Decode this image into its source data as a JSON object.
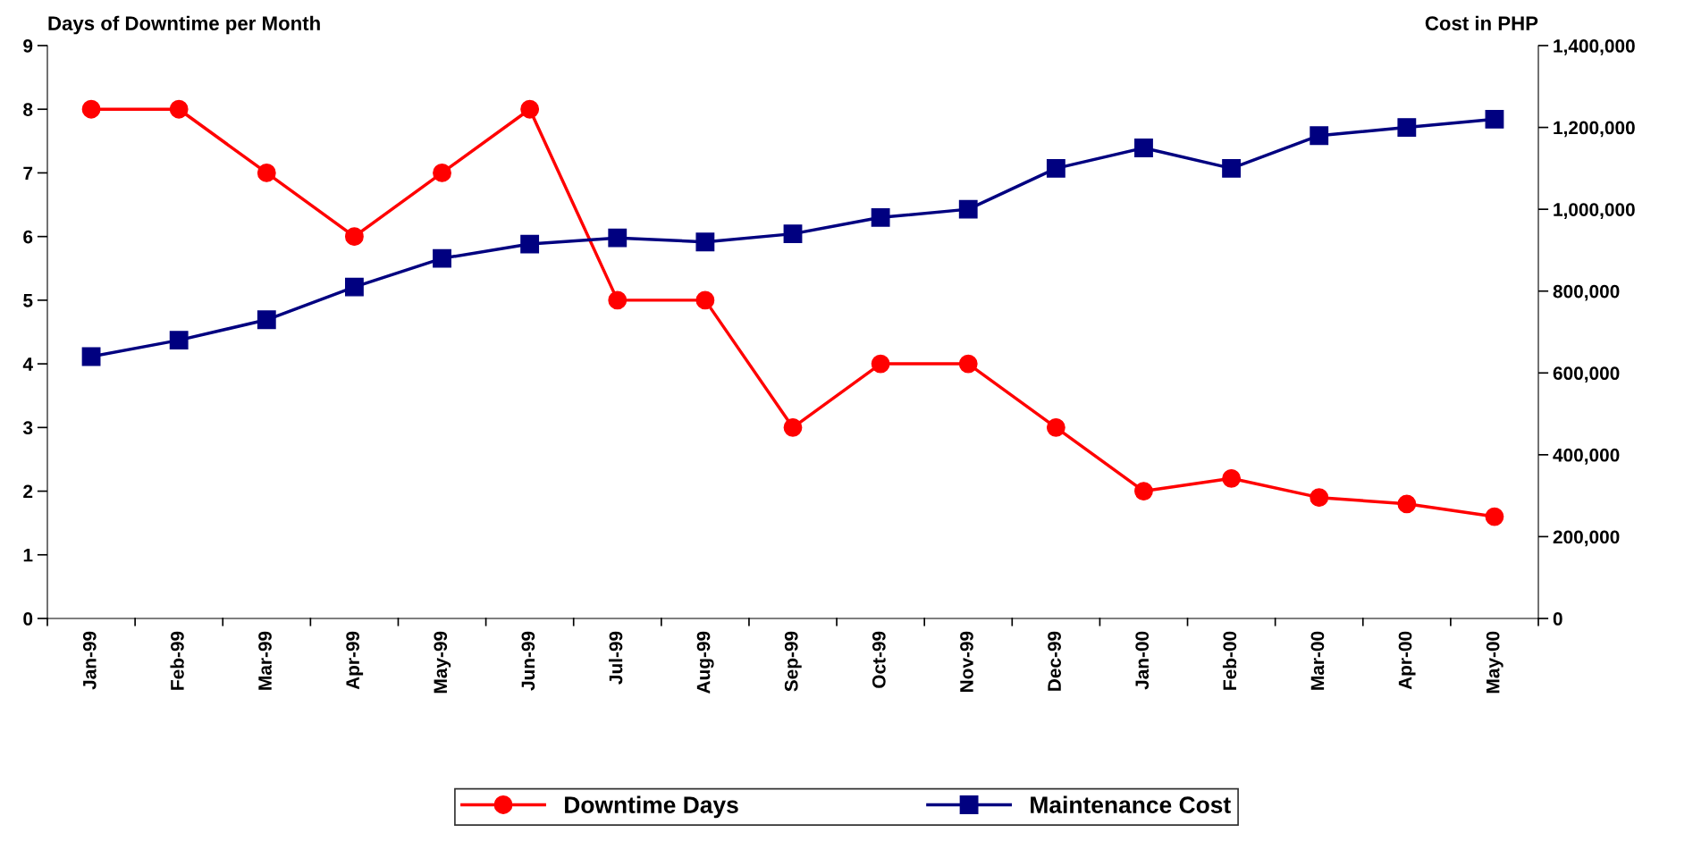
{
  "chart_data": {
    "type": "line",
    "categories": [
      "Jan-99",
      "Feb-99",
      "Mar-99",
      "Apr-99",
      "May-99",
      "Jun-99",
      "Jul-99",
      "Aug-99",
      "Sep-99",
      "Oct-99",
      "Nov-99",
      "Dec-99",
      "Jan-00",
      "Feb-00",
      "Mar-00",
      "Apr-00",
      "May-00"
    ],
    "series": [
      {
        "name": "Downtime Days",
        "color": "#ff0000",
        "marker": "circle",
        "values": [
          8,
          8,
          7,
          6,
          7,
          8,
          5,
          5,
          3,
          4,
          4,
          3,
          2,
          2.2,
          1.9,
          1.8,
          1.6
        ]
      },
      {
        "name": "Maintenance Cost",
        "color": "#000080",
        "marker": "square",
        "axis": "y2",
        "values": [
          640000,
          680000,
          730000,
          810000,
          880000,
          915000,
          930000,
          920000,
          940000,
          980000,
          1000000,
          1100000,
          1150000,
          1100000,
          1180000,
          1200000,
          1220000
        ]
      }
    ],
    "ylabel": "Days of Downtime per Month",
    "y2label": "Cost in PHP",
    "ylim": [
      0,
      9
    ],
    "yticks": [
      0,
      1,
      2,
      3,
      4,
      5,
      6,
      7,
      8,
      9
    ],
    "y2lim": [
      0,
      1400000
    ],
    "y2ticks": [
      {
        "value": 0,
        "label": "0"
      },
      {
        "value": 200000,
        "label": "200,000"
      },
      {
        "value": 400000,
        "label": "400,000"
      },
      {
        "value": 600000,
        "label": "600,000"
      },
      {
        "value": 800000,
        "label": "800,000"
      },
      {
        "value": 1000000,
        "label": "1,000,000"
      },
      {
        "value": 1200000,
        "label": "1,200,000"
      },
      {
        "value": 1400000,
        "label": "1,400,000"
      }
    ],
    "grid": false,
    "legend": "bottom"
  }
}
